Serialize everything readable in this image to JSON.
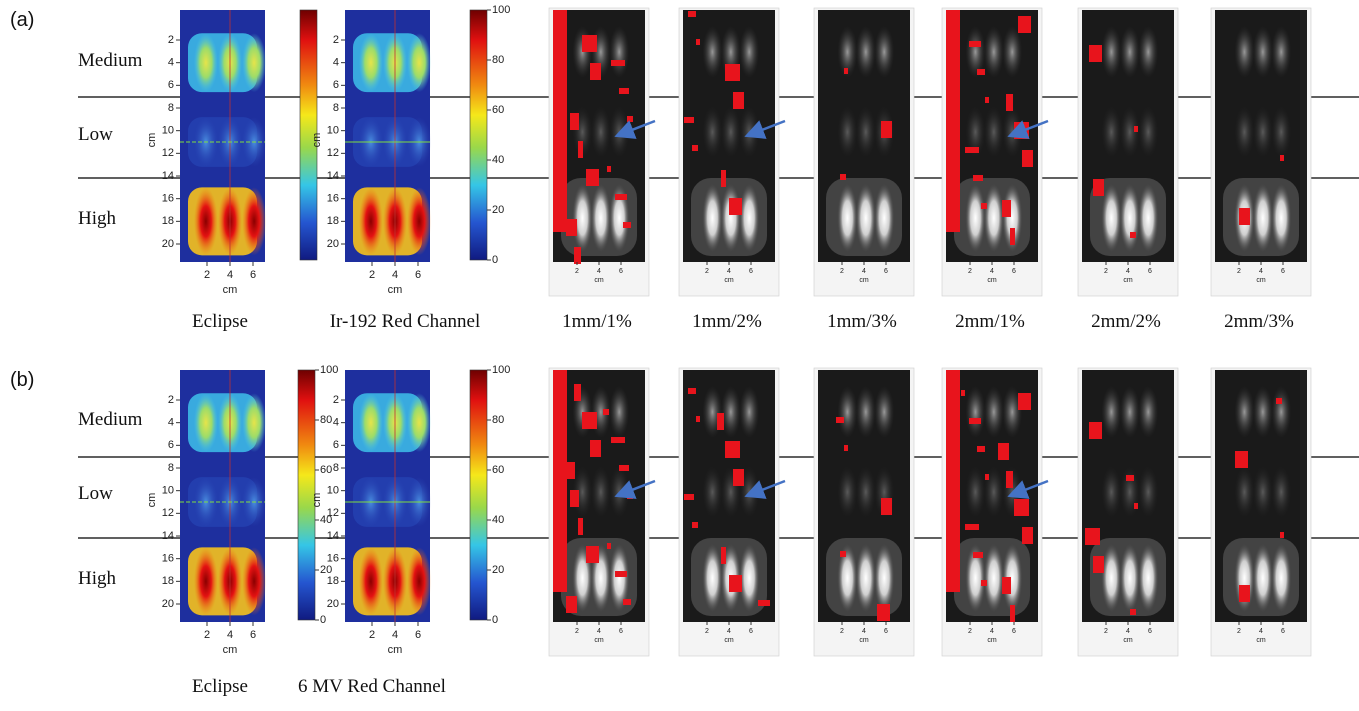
{
  "panels": [
    {
      "label": "(a)",
      "rows": [
        "Medium",
        "Low",
        "High"
      ],
      "maps": [
        {
          "caption": "Eclipse",
          "y_ticks": [
            2,
            4,
            6,
            8,
            10,
            12,
            14,
            16,
            18,
            20
          ],
          "x_ticks": [
            2,
            4,
            6
          ],
          "x_axis_label": "cm",
          "y_axis_label": "cm"
        },
        {
          "caption": "Ir-192 Red Channel",
          "y_ticks": [
            2,
            4,
            6,
            8,
            10,
            12,
            14,
            16,
            18,
            20
          ],
          "x_ticks": [
            2,
            4,
            6
          ],
          "x_axis_label": "cm",
          "y_axis_label": "cm",
          "colorbar_ticks": [
            0,
            20,
            40,
            60,
            80,
            100
          ]
        }
      ],
      "gamma_x_ticks": [
        2,
        4,
        6
      ],
      "gamma_axis_label": "cm",
      "gamma_captions": [
        "1mm/1%",
        "1mm/2%",
        "1mm/3%",
        "2mm/1%",
        "2mm/2%",
        "2mm/3%"
      ]
    },
    {
      "label": "(b)",
      "rows": [
        "Medium",
        "Low",
        "High"
      ],
      "maps": [
        {
          "caption": "Eclipse",
          "y_ticks": [
            2,
            4,
            6,
            8,
            10,
            12,
            14,
            16,
            18,
            20
          ],
          "x_ticks": [
            2,
            4,
            6
          ],
          "x_axis_label": "cm",
          "y_axis_label": "cm",
          "colorbar_ticks": [
            0,
            20,
            40,
            60,
            80,
            100
          ]
        },
        {
          "caption": "6 MV Red Channel",
          "y_ticks": [
            2,
            4,
            6,
            8,
            10,
            12,
            14,
            16,
            18,
            20
          ],
          "x_ticks": [
            2,
            4,
            6
          ],
          "x_axis_label": "cm",
          "y_axis_label": "cm",
          "colorbar_ticks": [
            0,
            20,
            40,
            60,
            80,
            100
          ]
        }
      ],
      "gamma_x_ticks": [
        2,
        4,
        6
      ],
      "gamma_axis_label": "cm"
    }
  ]
}
